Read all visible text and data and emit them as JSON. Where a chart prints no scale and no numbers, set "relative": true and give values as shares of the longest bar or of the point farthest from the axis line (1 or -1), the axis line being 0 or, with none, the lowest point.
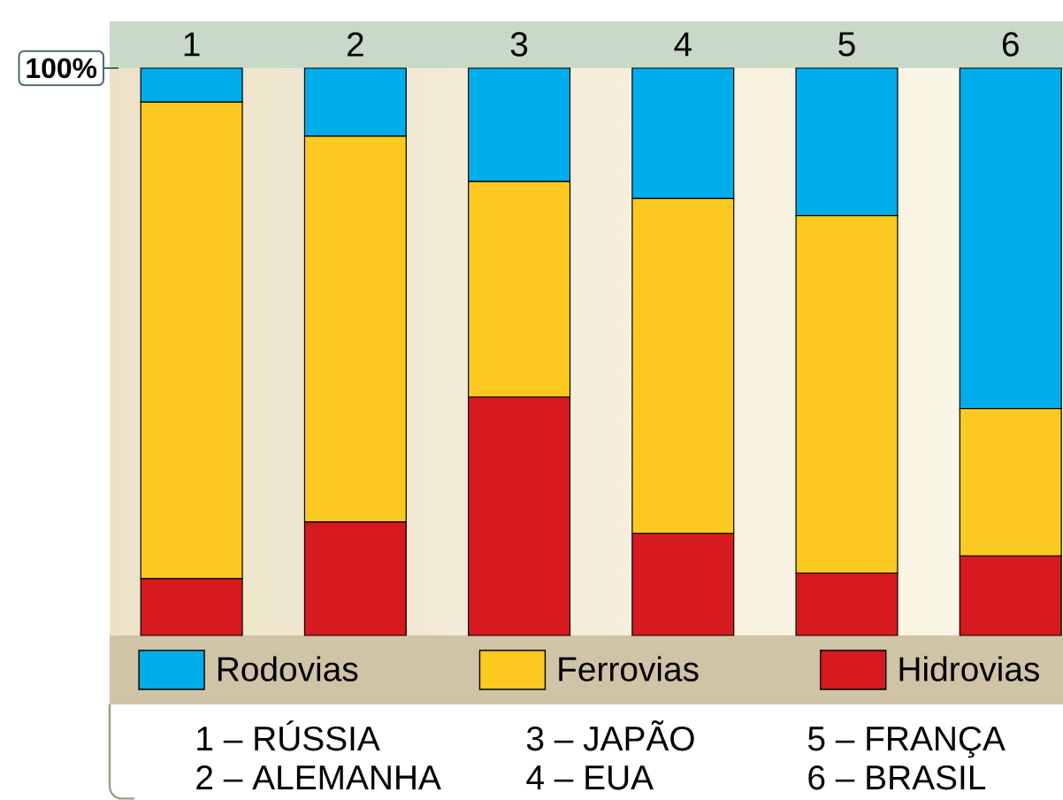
{
  "chart_data": {
    "type": "bar",
    "stacked": true,
    "relative": true,
    "categories": [
      "1",
      "2",
      "3",
      "4",
      "5",
      "6"
    ],
    "series": [
      {
        "name": "Hidrovias",
        "color": "#d71920",
        "values": [
          0.1,
          0.2,
          0.42,
          0.18,
          0.11,
          0.14
        ]
      },
      {
        "name": "Ferrovias",
        "color": "#fbc920",
        "values": [
          0.84,
          0.68,
          0.38,
          0.59,
          0.63,
          0.26
        ]
      },
      {
        "name": "Rodovias",
        "color": "#00adeb",
        "values": [
          0.06,
          0.12,
          0.2,
          0.23,
          0.26,
          0.6
        ]
      }
    ],
    "legend": "bottom",
    "annotations": [
      "100%",
      "1 – RÚSSIA",
      "2 – ALEMANHA",
      "3 – JAPÃO",
      "4 – EUA",
      "5 – FRANÇA",
      "6 – BRASIL"
    ]
  }
}
